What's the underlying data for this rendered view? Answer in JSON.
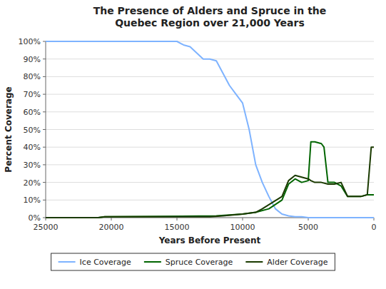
{
  "chart_data": {
    "type": "line",
    "title": "The Presence of Alders and Spruce in the\nQuebec Region over 21,000 Years",
    "x_label": "Years Before Present",
    "y_label": "Percent Coverage",
    "xlim": [
      25000,
      0
    ],
    "ylim": [
      0,
      1.0
    ],
    "xticks": [
      25000,
      20000,
      15000,
      10000,
      5000,
      0
    ],
    "yticks": [
      {
        "value": 0,
        "label": "0%"
      },
      {
        "value": 0.1,
        "label": "10%"
      },
      {
        "value": 0.2,
        "label": "20%"
      },
      {
        "value": 0.3,
        "label": "30%"
      },
      {
        "value": 0.4,
        "label": "40%"
      },
      {
        "value": 0.5,
        "label": "50%"
      },
      {
        "value": 0.6,
        "label": "60%"
      },
      {
        "value": 0.7,
        "label": "70%"
      },
      {
        "value": 0.8,
        "label": "80%"
      },
      {
        "value": 0.9,
        "label": "90%"
      },
      {
        "value": 1.0,
        "label": "100%"
      }
    ],
    "grid": true,
    "legend": "bottom",
    "series": [
      {
        "name": "Ice Coverage",
        "color": "#7EB3FF",
        "x": [
          25000,
          21000,
          20000,
          19000,
          18000,
          17000,
          16000,
          15000,
          14500,
          14000,
          13000,
          12500,
          12000,
          11500,
          11000,
          10500,
          10000,
          9500,
          9000,
          8500,
          8000,
          7500,
          7000,
          6500,
          6000,
          5500,
          5000,
          4500,
          0
        ],
        "values": [
          1.0,
          1.0,
          1.0,
          1.0,
          1.0,
          1.0,
          1.0,
          1.0,
          0.98,
          0.97,
          0.9,
          0.9,
          0.89,
          0.82,
          0.75,
          0.7,
          0.65,
          0.5,
          0.3,
          0.2,
          0.12,
          0.05,
          0.02,
          0.01,
          0.005,
          0.005,
          0.0,
          0.0,
          0.0
        ]
      },
      {
        "name": "Spruce Coverage",
        "color": "#006400",
        "x": [
          25000,
          21000,
          20500,
          12000,
          11000,
          10000,
          9500,
          9000,
          8000,
          7000,
          6500,
          6000,
          5500,
          5000,
          4800,
          4500,
          4000,
          3800,
          3500,
          3000,
          2500,
          2000,
          1500,
          1000,
          500,
          0
        ],
        "values": [
          0.0,
          0.0,
          0.005,
          0.01,
          0.015,
          0.02,
          0.025,
          0.03,
          0.05,
          0.1,
          0.19,
          0.22,
          0.2,
          0.21,
          0.43,
          0.43,
          0.42,
          0.4,
          0.2,
          0.2,
          0.18,
          0.12,
          0.12,
          0.12,
          0.13,
          0.13
        ]
      },
      {
        "name": "Alder Coverage",
        "color": "#1a3a00",
        "x": [
          25000,
          21000,
          20500,
          12500,
          11500,
          10000,
          9000,
          8500,
          7000,
          6500,
          6000,
          5500,
          5000,
          4800,
          4500,
          4000,
          3500,
          3000,
          2500,
          2000,
          1500,
          1000,
          500,
          200,
          0
        ],
        "values": [
          0.0,
          0.0,
          0.005,
          0.005,
          0.01,
          0.02,
          0.03,
          0.05,
          0.12,
          0.21,
          0.24,
          0.23,
          0.22,
          0.21,
          0.2,
          0.2,
          0.19,
          0.19,
          0.2,
          0.12,
          0.12,
          0.12,
          0.13,
          0.4,
          0.4
        ]
      }
    ]
  }
}
